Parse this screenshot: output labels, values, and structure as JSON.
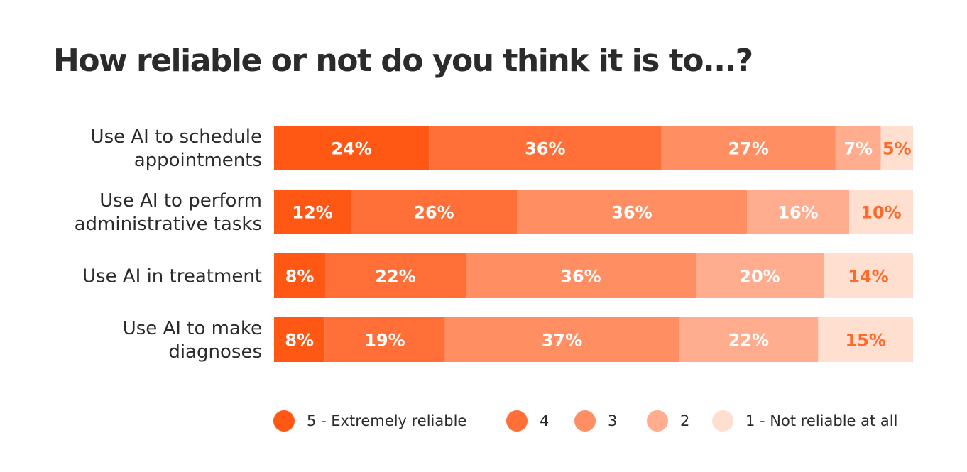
{
  "chart_data": {
    "type": "bar",
    "orientation": "horizontal",
    "stacked": true,
    "title": "How reliable or not do you think it is to...?",
    "categories": [
      [
        "Use AI to schedule",
        "appointments"
      ],
      [
        "Use AI to perform",
        "administrative tasks"
      ],
      [
        "Use AI in treatment"
      ],
      [
        "Use AI to make",
        "diagnoses"
      ]
    ],
    "series": [
      {
        "name": "5 - Extremely reliable",
        "color": "#FF5714",
        "label_color": "#ffffff",
        "values": [
          24,
          12,
          8,
          8
        ]
      },
      {
        "name": "4",
        "color": "#FF6F37",
        "label_color": "#ffffff",
        "values": [
          36,
          26,
          22,
          19
        ]
      },
      {
        "name": "3",
        "color": "#FF8F63",
        "label_color": "#ffffff",
        "values": [
          27,
          36,
          36,
          37
        ]
      },
      {
        "name": "2",
        "color": "#FFAD8E",
        "label_color": "#ffffff",
        "values": [
          7,
          16,
          20,
          22
        ]
      },
      {
        "name": "1 - Not reliable at all",
        "color": "#FFDFD0",
        "label_color": "#FF6A2A",
        "values": [
          5,
          10,
          14,
          15
        ]
      }
    ],
    "value_suffix": "%",
    "legend_position": "bottom-right",
    "grid": false
  }
}
